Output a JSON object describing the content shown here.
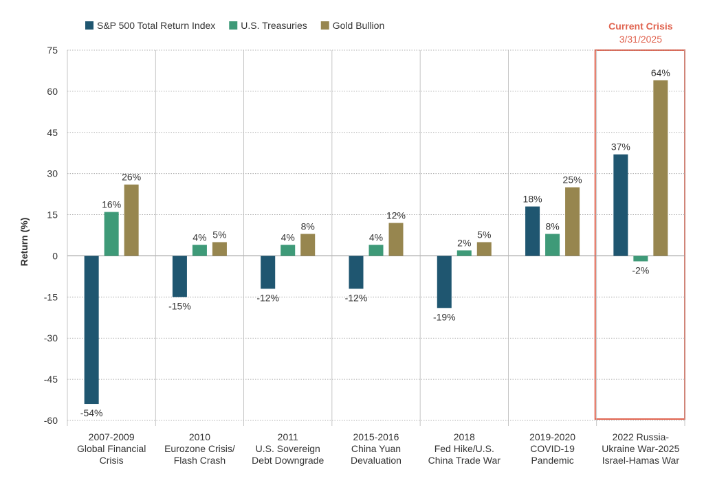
{
  "chart_data": {
    "type": "bar",
    "ylabel": "Return (%)",
    "ylim": [
      -60,
      75
    ],
    "yticks": [
      75,
      60,
      45,
      30,
      15,
      0,
      -15,
      -30,
      -45,
      -60
    ],
    "grid": true,
    "categories": [
      [
        "2007-2009",
        "Global Financial",
        "Crisis"
      ],
      [
        "2010",
        "Eurozone Crisis/",
        "Flash Crash"
      ],
      [
        "2011",
        "U.S. Sovereign",
        "Debt Downgrade"
      ],
      [
        "2015-2016",
        "China Yuan",
        "Devaluation"
      ],
      [
        "2018",
        "Fed Hike/U.S.",
        "China Trade War"
      ],
      [
        "2019-2020",
        "COVID-19",
        "Pandemic"
      ],
      [
        "2022 Russia-",
        "Ukraine War-2025",
        "Israel-Hamas War"
      ]
    ],
    "series": [
      {
        "name": "S&P 500 Total Return Index",
        "color": "#1f5670",
        "values": [
          -54,
          -15,
          -12,
          -12,
          -19,
          18,
          37
        ],
        "labels": [
          "-54%",
          "-15%",
          "-12%",
          "-12%",
          "-19%",
          "18%",
          "37%"
        ]
      },
      {
        "name": "U.S. Treasuries",
        "color": "#3e9a78",
        "values": [
          16,
          4,
          4,
          4,
          2,
          8,
          -2
        ],
        "labels": [
          "16%",
          "4%",
          "4%",
          "4%",
          "2%",
          "8%",
          "-2%"
        ]
      },
      {
        "name": "Gold Bullion",
        "color": "#97864f",
        "values": [
          26,
          5,
          8,
          12,
          5,
          25,
          64
        ],
        "labels": [
          "26%",
          "5%",
          "8%",
          "12%",
          "5%",
          "25%",
          "64%"
        ]
      }
    ],
    "highlight": {
      "category_index": 6,
      "title": "Current Crisis",
      "subtitle": "3/31/2025",
      "color": "#e0634f"
    },
    "legend": "top-left"
  }
}
